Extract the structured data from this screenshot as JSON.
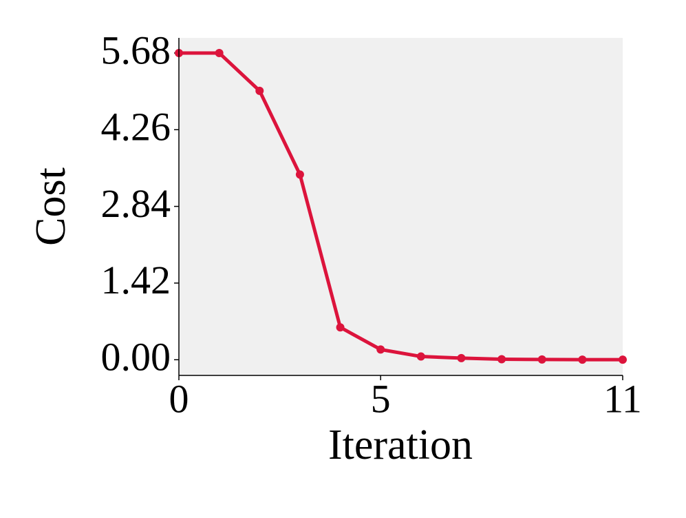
{
  "chart_data": {
    "type": "line",
    "x_label": "Iteration",
    "y_label": "Cost",
    "x": [
      0,
      1,
      2,
      3,
      4,
      5,
      6,
      7,
      8,
      9,
      10,
      11
    ],
    "series": [
      {
        "color": "#dc143c",
        "values": [
          5.68,
          5.68,
          4.98,
          3.43,
          0.6,
          0.19,
          0.06,
          0.03,
          0.01,
          0.005,
          0.002,
          0.001
        ]
      }
    ],
    "xlim": [
      0,
      11
    ],
    "xticks": [
      0,
      5,
      11
    ],
    "ylim": [
      -0.29,
      5.96
    ],
    "yticks": [
      {
        "value": 0,
        "label": "0.00"
      },
      1.42,
      2.84,
      4.26,
      5.68
    ],
    "background": "#f0f0f0"
  }
}
